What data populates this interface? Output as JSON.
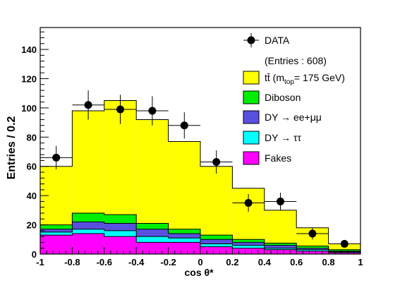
{
  "chart_data": {
    "type": "bar",
    "title": "",
    "xlabel": "cos θ*",
    "ylabel": "Entries / 0.2",
    "xlim": [
      -1,
      1
    ],
    "ylim": [
      0,
      155
    ],
    "x_bin_edges": [
      -1,
      -0.8,
      -0.6,
      -0.4,
      -0.2,
      0,
      0.2,
      0.4,
      0.6,
      0.8,
      1
    ],
    "x_ticks": [
      {
        "value": -1,
        "label": "-1"
      },
      {
        "value": -0.8,
        "label": "-0.8"
      },
      {
        "value": -0.6,
        "label": "-0.6"
      },
      {
        "value": -0.4,
        "label": "-0.4"
      },
      {
        "value": -0.2,
        "label": "-0.2"
      },
      {
        "value": 0,
        "label": "0"
      },
      {
        "value": 0.2,
        "label": "0.2"
      },
      {
        "value": 0.4,
        "label": "0.4"
      },
      {
        "value": 0.6,
        "label": "0.6"
      },
      {
        "value": 0.8,
        "label": "0.8"
      },
      {
        "value": 1,
        "label": "1"
      }
    ],
    "y_ticks": [
      {
        "value": 0,
        "label": "0"
      },
      {
        "value": 20,
        "label": "20"
      },
      {
        "value": 40,
        "label": "40"
      },
      {
        "value": 60,
        "label": "60"
      },
      {
        "value": 80,
        "label": "80"
      },
      {
        "value": 100,
        "label": "100"
      },
      {
        "value": 120,
        "label": "120"
      },
      {
        "value": 140,
        "label": "140"
      }
    ],
    "stack_order_bottom_to_top": [
      "Fakes",
      "DY → ττ",
      "DY → ee+μμ",
      "Diboson",
      "tt̄"
    ],
    "series": [
      {
        "key": "fakes",
        "color": "#ff00ff",
        "stack_top": [
          13,
          14,
          12,
          8,
          8,
          5,
          4,
          3,
          2,
          1
        ]
      },
      {
        "key": "dytautau",
        "color": "#00ffff",
        "stack_top": [
          15,
          17,
          16,
          12,
          11,
          7,
          6,
          4,
          3,
          1.5
        ]
      },
      {
        "key": "dyeemumu",
        "color": "#5a50e0",
        "stack_top": [
          17,
          22,
          21,
          17,
          14,
          10,
          8,
          6,
          4,
          2
        ]
      },
      {
        "key": "diboson",
        "color": "#00ee00",
        "stack_top": [
          20,
          28,
          27,
          21,
          17,
          13,
          10,
          7.5,
          5.5,
          3
        ]
      },
      {
        "key": "ttbar",
        "color": "#ffff00",
        "stack_top": [
          60,
          98,
          105,
          92,
          77,
          60,
          45,
          30,
          18,
          7
        ]
      }
    ],
    "data_points": [
      {
        "x": -0.9,
        "y": 66,
        "yerr": 8
      },
      {
        "x": -0.7,
        "y": 102,
        "yerr": 10
      },
      {
        "x": -0.5,
        "y": 99,
        "yerr": 10
      },
      {
        "x": -0.3,
        "y": 98,
        "yerr": 10
      },
      {
        "x": -0.1,
        "y": 88,
        "yerr": 9
      },
      {
        "x": 0.1,
        "y": 63,
        "yerr": 8
      },
      {
        "x": 0.3,
        "y": 35,
        "yerr": 6
      },
      {
        "x": 0.5,
        "y": 36,
        "yerr": 6
      },
      {
        "x": 0.7,
        "y": 14,
        "yerr": 4
      },
      {
        "x": 0.9,
        "y": 7,
        "yerr": 2.6
      }
    ],
    "legend": {
      "placement": "top-right",
      "data_label": "DATA",
      "entries_label": "(Entries : 608)",
      "items": [
        {
          "key": "ttbar",
          "label_pre": "tt̄ (m",
          "label_sub": "top",
          "label_post": "= 175 GeV)",
          "color": "#ffff00"
        },
        {
          "key": "diboson",
          "label": "Diboson",
          "color": "#00ee00"
        },
        {
          "key": "dyeemumu",
          "label": "DY → ee+μμ",
          "color": "#5a50e0"
        },
        {
          "key": "dytautau",
          "label": "DY → ττ",
          "color": "#00ffff"
        },
        {
          "key": "fakes",
          "label": "Fakes",
          "color": "#ff00ff"
        }
      ]
    }
  }
}
